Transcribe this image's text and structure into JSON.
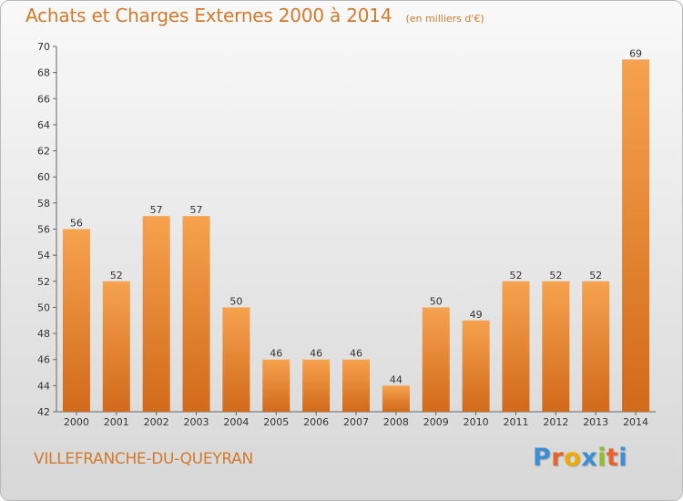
{
  "header": {
    "title": "Achats et Charges Externes 2000 à 2014",
    "subtitle": "(en milliers d'€)"
  },
  "footer": {
    "commune": "VILLEFRANCHE-DU-QUEYRAN",
    "logo_letters": [
      "P",
      "r",
      "o",
      "x",
      "i",
      "t",
      "i"
    ],
    "logo_colors": [
      "#3b8fd4",
      "#e8632b",
      "#f2a900",
      "#3b8fd4",
      "#8fbf2a",
      "#e8632b",
      "#3b8fd4"
    ]
  },
  "colors": {
    "accent": "#d27a2c",
    "bar_top": "#f6a24f",
    "bar_bottom": "#d16a1a"
  },
  "chart_data": {
    "type": "bar",
    "title": "Achats et Charges Externes 2000 à 2014",
    "subtitle": "(en milliers d'€)",
    "categories": [
      "2000",
      "2001",
      "2002",
      "2003",
      "2004",
      "2005",
      "2006",
      "2007",
      "2008",
      "2009",
      "2010",
      "2011",
      "2012",
      "2013",
      "2014"
    ],
    "values": [
      56,
      52,
      57,
      57,
      50,
      46,
      46,
      46,
      44,
      50,
      49,
      52,
      52,
      52,
      69
    ],
    "ylim": [
      42,
      70
    ],
    "yticks": [
      42,
      44,
      46,
      48,
      50,
      52,
      54,
      56,
      58,
      60,
      62,
      64,
      66,
      68,
      70
    ],
    "grid": false,
    "legend": "none"
  }
}
